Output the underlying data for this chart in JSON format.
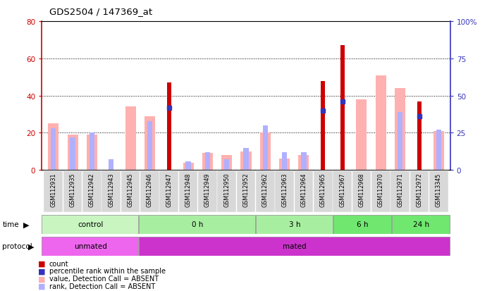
{
  "title": "GDS2504 / 147369_at",
  "samples": [
    "GSM112931",
    "GSM112935",
    "GSM112942",
    "GSM112943",
    "GSM112945",
    "GSM112946",
    "GSM112947",
    "GSM112948",
    "GSM112949",
    "GSM112950",
    "GSM112952",
    "GSM112962",
    "GSM112963",
    "GSM112964",
    "GSM112965",
    "GSM112967",
    "GSM112968",
    "GSM112970",
    "GSM112971",
    "GSM112972",
    "GSM113345"
  ],
  "count_values": [
    0,
    0,
    0,
    0,
    0,
    0,
    47,
    0,
    0,
    0,
    0,
    0,
    0,
    0,
    48,
    67,
    0,
    0,
    0,
    37,
    0
  ],
  "rank_values_pct": [
    0,
    0,
    0,
    0,
    0,
    0,
    42,
    0,
    0,
    0,
    0,
    0,
    0,
    0,
    40,
    46,
    0,
    0,
    0,
    36,
    0
  ],
  "value_absent": [
    25,
    19,
    19,
    0,
    34,
    29,
    0,
    4,
    9,
    8,
    10,
    20,
    6,
    8,
    0,
    0,
    38,
    51,
    44,
    0,
    21
  ],
  "rank_absent_pct": [
    28,
    22,
    25,
    7,
    0,
    33,
    0,
    6,
    12,
    7,
    15,
    30,
    12,
    12,
    0,
    0,
    0,
    0,
    39,
    0,
    27
  ],
  "ylim_left": [
    0,
    80
  ],
  "ylim_right": [
    0,
    100
  ],
  "yticks_left": [
    0,
    20,
    40,
    60,
    80
  ],
  "yticks_right": [
    0,
    25,
    50,
    75,
    100
  ],
  "ytick_labels_right": [
    "0",
    "25",
    "50",
    "75",
    "100%"
  ],
  "time_groups": [
    {
      "label": "control",
      "start": 0,
      "end": 5
    },
    {
      "label": "0 h",
      "start": 5,
      "end": 11
    },
    {
      "label": "3 h",
      "start": 11,
      "end": 15
    },
    {
      "label": "6 h",
      "start": 15,
      "end": 18
    },
    {
      "label": "24 h",
      "start": 18,
      "end": 21
    }
  ],
  "time_colors": [
    "#c8f5c0",
    "#a8eeA0",
    "#a8eeA0",
    "#70e870",
    "#70e870"
  ],
  "protocol_groups": [
    {
      "label": "unmated",
      "start": 0,
      "end": 5
    },
    {
      "label": "mated",
      "start": 5,
      "end": 21
    }
  ],
  "protocol_colors": [
    "#ee66ee",
    "#cc33cc"
  ],
  "color_count": "#cc0000",
  "color_rank": "#3333bb",
  "color_value_absent": "#ffb0b0",
  "color_rank_absent": "#b0b0ff",
  "legend_items": [
    {
      "label": "count",
      "color": "#cc0000"
    },
    {
      "label": "percentile rank within the sample",
      "color": "#3333bb"
    },
    {
      "label": "value, Detection Call = ABSENT",
      "color": "#ffb0b0"
    },
    {
      "label": "rank, Detection Call = ABSENT",
      "color": "#b0b0ff"
    }
  ]
}
